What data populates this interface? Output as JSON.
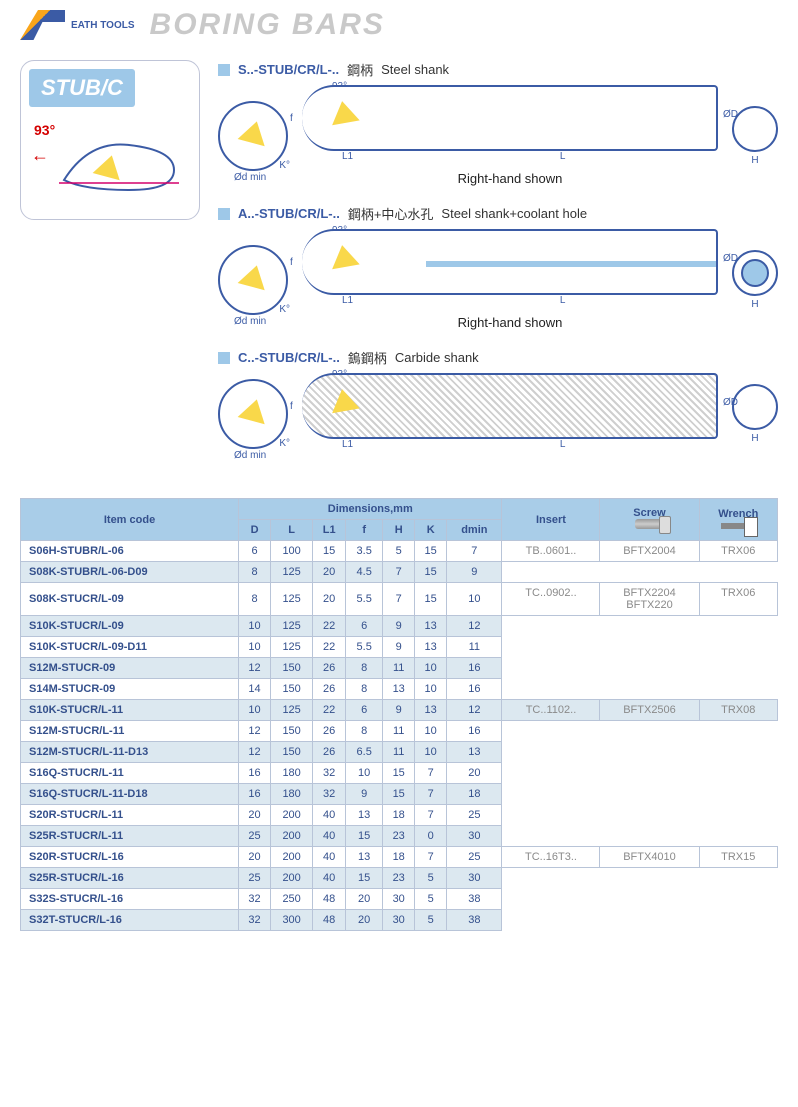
{
  "brand": "EATH TOOLS",
  "page_title": "BORING BARS",
  "product_badge": "STUB/C",
  "angle": "93°",
  "diagram_labels": {
    "k": "K°",
    "dmin": "Ød min",
    "f": "f",
    "l1": "L1",
    "l": "L",
    "od": "ØD",
    "h": "H"
  },
  "variants": [
    {
      "code": "S..-STUB/CR/L-..",
      "name_zh": "鋼柄",
      "name_en": "Steel shank",
      "rhand": "Right-hand shown",
      "coolant": false,
      "end_inner": false,
      "hatched": false
    },
    {
      "code": "A..-STUB/CR/L-..",
      "name_zh": "鋼柄+中心水孔",
      "name_en": "Steel shank+coolant hole",
      "rhand": "Right-hand shown",
      "coolant": true,
      "end_inner": true,
      "hatched": false
    },
    {
      "code": "C..-STUB/CR/L-..",
      "name_zh": "鎢鋼柄",
      "name_en": "Carbide shank",
      "rhand": "",
      "coolant": false,
      "end_inner": false,
      "hatched": true
    }
  ],
  "table": {
    "header_item": "Item code",
    "header_dim": "Dimensions,mm",
    "dim_cols": [
      "D",
      "L",
      "L1",
      "f",
      "H",
      "K",
      "dmin"
    ],
    "header_insert": "Insert",
    "header_screw": "Screw",
    "header_wrench": "Wrench",
    "groups": [
      {
        "insert": "TB..0601..",
        "screw": "BFTX2004",
        "wrench": "TRX06",
        "rows": [
          {
            "item": "S06H-STUBR/L-06",
            "d": [
              6,
              100,
              15,
              3.5,
              5,
              15,
              7
            ]
          },
          {
            "item": "S08K-STUBR/L-06-D09",
            "d": [
              8,
              125,
              20,
              4.5,
              7,
              15,
              9
            ]
          }
        ]
      },
      {
        "insert": "TC..0902..",
        "screw": "BFTX2204",
        "screw2": "BFTX220",
        "wrench": "TRX06",
        "rows": [
          {
            "item": "S08K-STUCR/L-09",
            "d": [
              8,
              125,
              20,
              5.5,
              7,
              15,
              10
            ]
          },
          {
            "item": "S10K-STUCR/L-09",
            "d": [
              10,
              125,
              22,
              6,
              9,
              13,
              12
            ]
          },
          {
            "item": "S10K-STUCR/L-09-D11",
            "d": [
              10,
              125,
              22,
              5.5,
              9,
              13,
              11
            ]
          },
          {
            "item": "S12M-STUCR-09",
            "d": [
              12,
              150,
              26,
              8,
              11,
              10,
              16
            ]
          },
          {
            "item": "S14M-STUCR-09",
            "d": [
              14,
              150,
              26,
              8,
              13,
              10,
              16
            ]
          }
        ]
      },
      {
        "insert": "TC..1102..",
        "screw": "BFTX2506",
        "wrench": "TRX08",
        "rows": [
          {
            "item": "S10K-STUCR/L-11",
            "d": [
              10,
              125,
              22,
              6,
              9,
              13,
              12
            ]
          },
          {
            "item": "S12M-STUCR/L-11",
            "d": [
              12,
              150,
              26,
              8,
              11,
              10,
              16
            ]
          },
          {
            "item": "S12M-STUCR/L-11-D13",
            "d": [
              12,
              150,
              26,
              6.5,
              11,
              10,
              13
            ]
          },
          {
            "item": "S16Q-STUCR/L-11",
            "d": [
              16,
              180,
              32,
              10,
              15,
              7,
              20
            ]
          },
          {
            "item": "S16Q-STUCR/L-11-D18",
            "d": [
              16,
              180,
              32,
              9,
              15,
              7,
              18
            ]
          },
          {
            "item": "S20R-STUCR/L-11",
            "d": [
              20,
              200,
              40,
              13,
              18,
              7,
              25
            ]
          },
          {
            "item": "S25R-STUCR/L-11",
            "d": [
              25,
              200,
              40,
              15,
              23,
              0,
              30
            ]
          }
        ]
      },
      {
        "insert": "TC..16T3..",
        "screw": "BFTX4010",
        "wrench": "TRX15",
        "rows": [
          {
            "item": "S20R-STUCR/L-16",
            "d": [
              20,
              200,
              40,
              13,
              18,
              7,
              25
            ]
          },
          {
            "item": "S25R-STUCR/L-16",
            "d": [
              25,
              200,
              40,
              15,
              23,
              5,
              30
            ]
          },
          {
            "item": "S32S-STUCR/L-16",
            "d": [
              32,
              250,
              48,
              20,
              30,
              5,
              38
            ]
          },
          {
            "item": "S32T-STUCR/L-16",
            "d": [
              32,
              300,
              48,
              20,
              30,
              5,
              38
            ]
          }
        ]
      }
    ]
  },
  "colors": {
    "header_bg": "#a9cde8",
    "alt_bg": "#dce8f0",
    "border": "#b8c4d8",
    "brand_blue": "#3b5ba5",
    "title_grey": "#c9c9c9",
    "accent_red": "#d40000",
    "insert_yellow": "#f9d84a"
  }
}
